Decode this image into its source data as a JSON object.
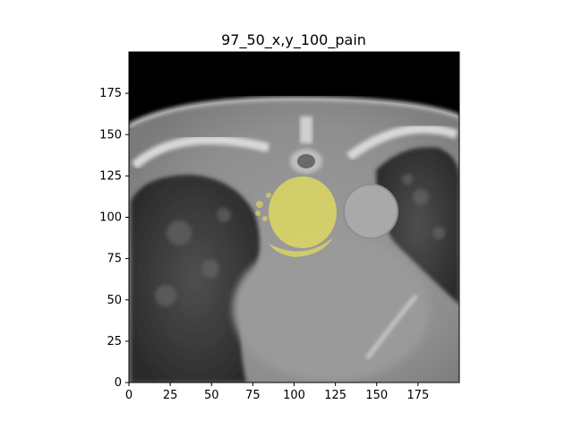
{
  "title": "97_50_x,y_100_pain",
  "x_ticks": [
    "0",
    "25",
    "50",
    "75",
    "100",
    "125",
    "150",
    "175"
  ],
  "y_ticks": [
    "0",
    "25",
    "50",
    "75",
    "100",
    "125",
    "150",
    "175"
  ],
  "x_range": [
    0,
    200
  ],
  "y_range": [
    0,
    200
  ],
  "image_description_colors": {
    "overlay": "#e6e05a",
    "scan_background": "#000000"
  }
}
